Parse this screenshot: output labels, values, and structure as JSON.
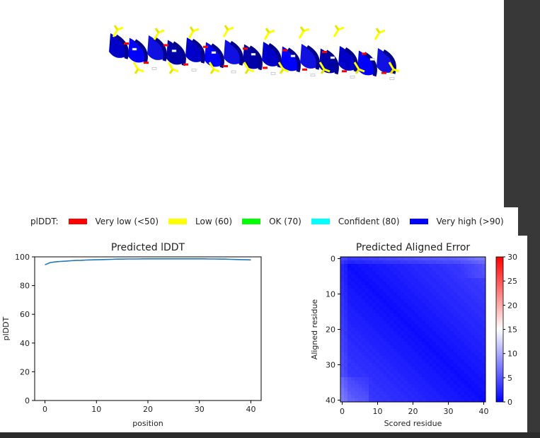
{
  "legend": {
    "label": "plDDT:",
    "items": [
      {
        "label": "Very low (<50)",
        "color": "#ff0000"
      },
      {
        "label": "Low (60)",
        "color": "#ffff00"
      },
      {
        "label": "OK (70)",
        "color": "#00ff00"
      },
      {
        "label": "Confident (80)",
        "color": "#00ffff"
      },
      {
        "label": "Very high (>90)",
        "color": "#0000ff"
      }
    ]
  },
  "chart_data": [
    {
      "type": "line",
      "title": "Predicted lDDT",
      "xlabel": "position",
      "ylabel": "plDDT",
      "xlim": [
        -2,
        42
      ],
      "ylim": [
        0,
        100
      ],
      "xticks": [
        0,
        10,
        20,
        30,
        40
      ],
      "yticks": [
        0,
        20,
        40,
        60,
        80,
        100
      ],
      "line_color": "#1f77b4",
      "x": [
        0,
        1,
        2,
        3,
        4,
        5,
        6,
        7,
        8,
        9,
        10,
        11,
        12,
        13,
        14,
        15,
        16,
        17,
        18,
        19,
        20,
        21,
        22,
        23,
        24,
        25,
        26,
        27,
        28,
        29,
        30,
        31,
        32,
        33,
        34,
        35,
        36,
        37,
        38,
        39,
        40
      ],
      "y": [
        94.5,
        96.0,
        96.5,
        96.8,
        97.0,
        97.3,
        97.5,
        97.6,
        97.8,
        97.9,
        98.0,
        98.1,
        98.2,
        98.3,
        98.4,
        98.4,
        98.5,
        98.5,
        98.5,
        98.6,
        98.6,
        98.6,
        98.6,
        98.6,
        98.6,
        98.6,
        98.6,
        98.6,
        98.6,
        98.6,
        98.6,
        98.6,
        98.5,
        98.5,
        98.4,
        98.4,
        98.3,
        98.2,
        98.1,
        98.0,
        97.9
      ]
    },
    {
      "type": "heatmap",
      "title": "Predicted Aligned Error",
      "xlabel": "Scored residue",
      "ylabel": "Aligned residue",
      "n": 41,
      "xticks": [
        0,
        10,
        20,
        30,
        40
      ],
      "yticks": [
        0,
        10,
        20,
        30,
        40
      ],
      "colorbar": {
        "min": 0,
        "max": 30,
        "ticks": [
          0,
          5,
          10,
          15,
          20,
          25,
          30
        ],
        "colors": [
          "#0000ff",
          "#ffffff",
          "#ff0000"
        ]
      }
    }
  ]
}
